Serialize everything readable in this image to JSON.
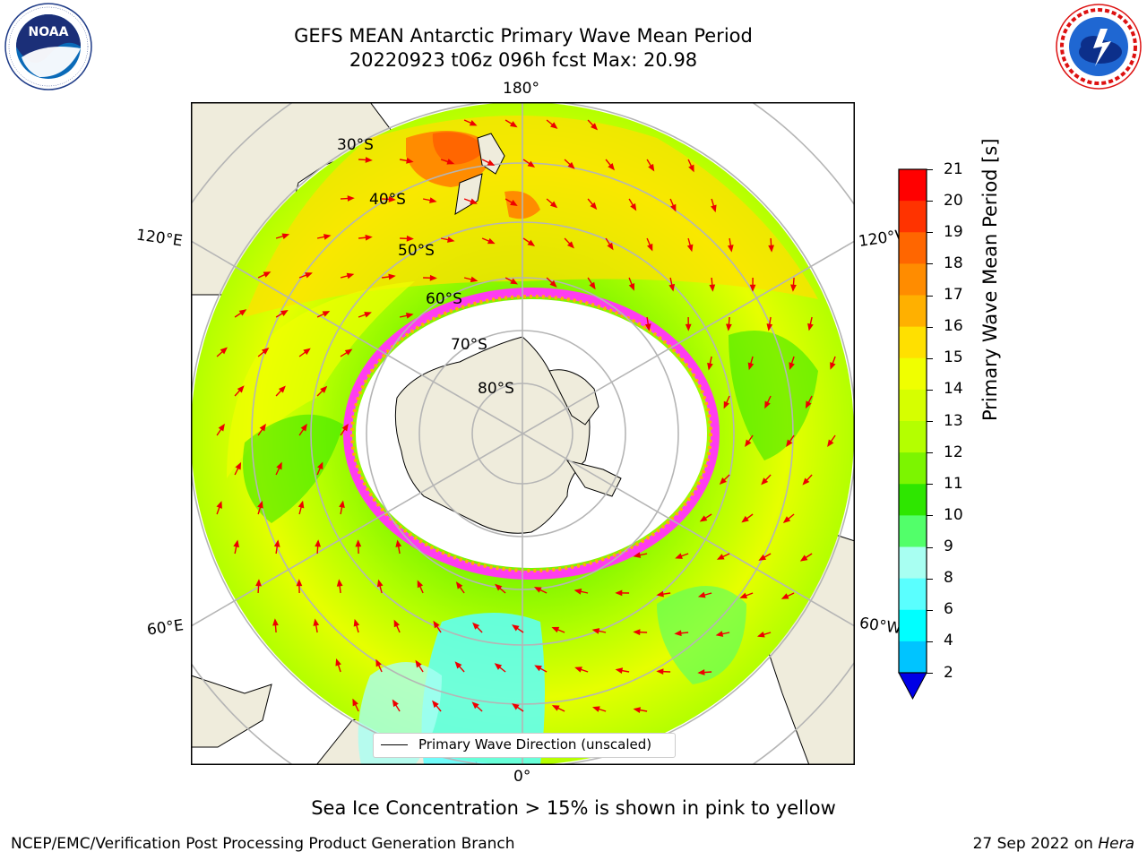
{
  "header": {
    "title_line1": "GEFS MEAN Antarctic Primary Wave Mean Period",
    "title_line2": "20220923 t06z 096h fcst   Max: 20.98"
  },
  "logos": {
    "noaa_text": "NOAA",
    "noaa_ring": "NATIONAL OCEANIC AND ATMOSPHERIC ADMINISTRATION · U.S. DEPARTMENT OF COMMERCE",
    "nws_ring": "NATIONAL WEATHER SERVICE"
  },
  "map": {
    "lon_labels": {
      "top": "180°",
      "bottom": "0°",
      "upper_left": "120°E",
      "upper_right": "120°W",
      "lower_left": "60°E",
      "lower_right": "60°W"
    },
    "lat_labels": [
      "30°S",
      "40°S",
      "50°S",
      "60°S",
      "70°S",
      "80°S"
    ],
    "legend_label": "Primary Wave Direction (unscaled)"
  },
  "colorbar": {
    "label": "Primary Wave Mean Period [s]",
    "ticks": [
      "21",
      "20",
      "19",
      "18",
      "17",
      "16",
      "15",
      "14",
      "13",
      "12",
      "11",
      "10",
      "9",
      "8",
      "6",
      "4",
      "2"
    ],
    "colors": [
      "#ff0000",
      "#ff3300",
      "#ff6600",
      "#ff8c00",
      "#ffb000",
      "#ffe000",
      "#f0ff00",
      "#d6ff00",
      "#b4ff00",
      "#7cf500",
      "#2ee600",
      "#52ff6a",
      "#a8fff2",
      "#5affff",
      "#00ffff",
      "#00c4ff",
      "#0070ff"
    ],
    "extend_color": "#0000e6"
  },
  "notes": {
    "ice": "Sea Ice Concentration > 15% is shown in pink to yellow"
  },
  "footer": {
    "left": "NCEP/EMC/Verification Post Processing Product Generation Branch",
    "date": "27 Sep 2022 on",
    "host": "Hera"
  }
}
